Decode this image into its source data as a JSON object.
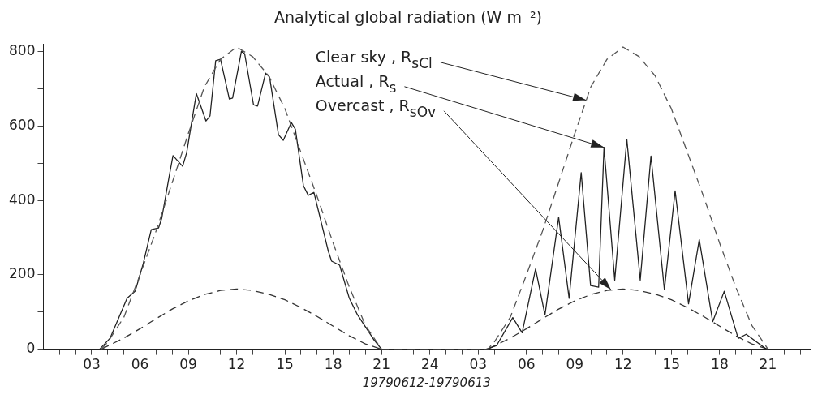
{
  "chart_data": {
    "type": "line",
    "title": "Analytical global radiation (W m⁻²)",
    "xlabel": "19790612-19790613",
    "xlim": [
      "1979-06-12T00:00",
      "1979-06-13T23:36"
    ],
    "ylim": [
      0,
      820
    ],
    "xticks": [
      {
        "value": "1979-06-12T01:00",
        "label": null
      },
      {
        "value": "1979-06-12T02:00",
        "label": null
      },
      {
        "value": "1979-06-12T03:00",
        "label": "03"
      },
      {
        "value": "1979-06-12T04:00",
        "label": null
      },
      {
        "value": "1979-06-12T05:00",
        "label": null
      },
      {
        "value": "1979-06-12T06:00",
        "label": "06"
      },
      {
        "value": "1979-06-12T07:00",
        "label": null
      },
      {
        "value": "1979-06-12T08:00",
        "label": null
      },
      {
        "value": "1979-06-12T09:00",
        "label": "09"
      },
      {
        "value": "1979-06-12T10:00",
        "label": null
      },
      {
        "value": "1979-06-12T11:00",
        "label": null
      },
      {
        "value": "1979-06-12T12:00",
        "label": "12"
      },
      {
        "value": "1979-06-12T13:00",
        "label": null
      },
      {
        "value": "1979-06-12T14:00",
        "label": null
      },
      {
        "value": "1979-06-12T15:00",
        "label": "15"
      },
      {
        "value": "1979-06-12T16:00",
        "label": null
      },
      {
        "value": "1979-06-12T17:00",
        "label": null
      },
      {
        "value": "1979-06-12T18:00",
        "label": "18"
      },
      {
        "value": "1979-06-12T19:00",
        "label": null
      },
      {
        "value": "1979-06-12T20:00",
        "label": null
      },
      {
        "value": "1979-06-12T21:00",
        "label": "21"
      },
      {
        "value": "1979-06-12T22:00",
        "label": null
      },
      {
        "value": "1979-06-12T23:00",
        "label": null
      },
      {
        "value": "1979-06-12T24:00",
        "label": "24"
      },
      {
        "value": "1979-06-13T01:00",
        "label": null
      },
      {
        "value": "1979-06-13T02:00",
        "label": null
      },
      {
        "value": "1979-06-13T03:00",
        "label": "03"
      },
      {
        "value": "1979-06-13T04:00",
        "label": null
      },
      {
        "value": "1979-06-13T05:00",
        "label": null
      },
      {
        "value": "1979-06-13T06:00",
        "label": "06"
      },
      {
        "value": "1979-06-13T07:00",
        "label": null
      },
      {
        "value": "1979-06-13T08:00",
        "label": null
      },
      {
        "value": "1979-06-13T09:00",
        "label": "09"
      },
      {
        "value": "1979-06-13T10:00",
        "label": null
      },
      {
        "value": "1979-06-13T11:00",
        "label": null
      },
      {
        "value": "1979-06-13T12:00",
        "label": "12"
      },
      {
        "value": "1979-06-13T13:00",
        "label": null
      },
      {
        "value": "1979-06-13T14:00",
        "label": null
      },
      {
        "value": "1979-06-13T15:00",
        "label": "15"
      },
      {
        "value": "1979-06-13T16:00",
        "label": null
      },
      {
        "value": "1979-06-13T17:00",
        "label": null
      },
      {
        "value": "1979-06-13T18:00",
        "label": "18"
      },
      {
        "value": "1979-06-13T19:00",
        "label": null
      },
      {
        "value": "1979-06-13T20:00",
        "label": null
      },
      {
        "value": "1979-06-13T21:00",
        "label": "21"
      },
      {
        "value": "1979-06-13T22:00",
        "label": null
      },
      {
        "value": "1979-06-13T23:00",
        "label": null
      }
    ],
    "yticks": [
      0,
      {
        "value": 100,
        "label": null
      },
      200,
      {
        "value": 300,
        "label": null
      },
      400,
      {
        "value": 500,
        "label": null
      },
      600,
      {
        "value": 700,
        "label": null
      },
      800
    ],
    "grid": false,
    "legend": false,
    "marker": "none",
    "series": [
      {
        "color": "#555555",
        "line_style": "dashed",
        "x": [
          "1979-06-12T03:36",
          "1979-06-12T04:00",
          "1979-06-12T05:00",
          "1979-06-12T06:00",
          "1979-06-12T07:00",
          "1979-06-12T08:00",
          "1979-06-12T09:00",
          "1979-06-12T10:00",
          "1979-06-12T11:00",
          "1979-06-12T12:00",
          "1979-06-12T13:00",
          "1979-06-12T14:00",
          "1979-06-12T15:00",
          "1979-06-12T16:00",
          "1979-06-12T17:00",
          "1979-06-12T18:00",
          "1979-06-12T19:00",
          "1979-06-12T20:00",
          "1979-06-12T21:00",
          "1979-06-13T03:36",
          "1979-06-13T04:00",
          "1979-06-13T05:00",
          "1979-06-13T06:00",
          "1979-06-13T07:00",
          "1979-06-13T08:00",
          "1979-06-13T09:00",
          "1979-06-13T10:00",
          "1979-06-13T11:00",
          "1979-06-13T12:00",
          "1979-06-13T13:00",
          "1979-06-13T14:00",
          "1979-06-13T15:00",
          "1979-06-13T16:00",
          "1979-06-13T17:00",
          "1979-06-13T18:00",
          "1979-06-13T19:00",
          "1979-06-13T20:00",
          "1979-06-13T21:00"
        ],
        "values": [
          0,
          19,
          86,
          200,
          318,
          448,
          580,
          706,
          780,
          813,
          787,
          735,
          647,
          529,
          411,
          285,
          167,
          64,
          0,
          0,
          19,
          86,
          200,
          318,
          448,
          580,
          706,
          780,
          813,
          787,
          735,
          647,
          529,
          411,
          285,
          167,
          64,
          0
        ]
      },
      {
        "color": "#222222",
        "line_style": "solid",
        "x": [
          "1979-06-12T03:30",
          "1979-06-12T04:09",
          "1979-06-12T05:12",
          "1979-06-12T05:42",
          "1979-06-12T06:12",
          "1979-06-12T06:42",
          "1979-06-12T07:09",
          "1979-06-12T07:21",
          "1979-06-12T07:48",
          "1979-06-12T08:03",
          "1979-06-12T08:39",
          "1979-06-12T08:54",
          "1979-06-12T09:30",
          "1979-06-12T10:06",
          "1979-06-12T10:21",
          "1979-06-12T10:42",
          "1979-06-12T11:00",
          "1979-06-12T11:33",
          "1979-06-12T11:45",
          "1979-06-12T12:18",
          "1979-06-12T12:30",
          "1979-06-12T13:03",
          "1979-06-12T13:18",
          "1979-06-12T13:48",
          "1979-06-12T14:03",
          "1979-06-12T14:36",
          "1979-06-12T14:54",
          "1979-06-12T15:24",
          "1979-06-12T15:39",
          "1979-06-12T16:09",
          "1979-06-12T16:27",
          "1979-06-12T16:48",
          "1979-06-12T17:42",
          "1979-06-12T17:54",
          "1979-06-12T18:24",
          "1979-06-12T19:00",
          "1979-06-12T19:30",
          "1979-06-12T20:30",
          "1979-06-12T21:00",
          "1979-06-13T03:30",
          "1979-06-13T04:09",
          "1979-06-13T05:09",
          "1979-06-13T05:44",
          "1979-06-13T06:34",
          "1979-06-13T07:09",
          "1979-06-13T08:00",
          "1979-06-13T08:39",
          "1979-06-13T09:24",
          "1979-06-13T09:59",
          "1979-06-13T10:29",
          "1979-06-13T10:49",
          "1979-06-13T11:29",
          "1979-06-13T12:14",
          "1979-06-13T13:04",
          "1979-06-13T13:44",
          "1979-06-13T14:34",
          "1979-06-13T15:14",
          "1979-06-13T16:04",
          "1979-06-13T16:44",
          "1979-06-13T17:34",
          "1979-06-13T18:17",
          "1979-06-13T19:09",
          "1979-06-13T19:39",
          "1979-06-13T20:54"
        ],
        "values": [
          0,
          30,
          137,
          156,
          230,
          322,
          326,
          352,
          462,
          521,
          492,
          529,
          688,
          614,
          628,
          776,
          780,
          673,
          676,
          802,
          795,
          658,
          654,
          743,
          732,
          577,
          562,
          610,
          592,
          440,
          414,
          422,
          263,
          237,
          226,
          137,
          93,
          27,
          0,
          0,
          10,
          85,
          44,
          216,
          92,
          355,
          137,
          475,
          171,
          167,
          543,
          186,
          565,
          186,
          520,
          160,
          426,
          122,
          295,
          74,
          156,
          29,
          40,
          0
        ]
      },
      {
        "color": "#333333",
        "line_style": "dashed",
        "x": [
          "1979-06-12T03:36",
          "1979-06-12T05:00",
          "1979-06-12T06:00",
          "1979-06-12T07:00",
          "1979-06-12T08:00",
          "1979-06-12T09:00",
          "1979-06-12T10:00",
          "1979-06-12T11:00",
          "1979-06-12T12:00",
          "1979-06-12T13:00",
          "1979-06-12T14:00",
          "1979-06-12T15:00",
          "1979-06-12T16:00",
          "1979-06-12T17:00",
          "1979-06-12T18:00",
          "1979-06-12T19:00",
          "1979-06-12T20:00",
          "1979-06-12T21:00",
          "1979-06-13T03:36",
          "1979-06-13T05:00",
          "1979-06-13T06:00",
          "1979-06-13T07:00",
          "1979-06-13T08:00",
          "1979-06-13T09:00",
          "1979-06-13T10:00",
          "1979-06-13T11:00",
          "1979-06-13T12:00",
          "1979-06-13T13:00",
          "1979-06-13T14:00",
          "1979-06-13T15:00",
          "1979-06-13T16:00",
          "1979-06-13T17:00",
          "1979-06-13T18:00",
          "1979-06-13T19:00",
          "1979-06-13T20:00",
          "1979-06-13T21:00"
        ],
        "values": [
          0,
          30,
          55,
          82,
          108,
          130,
          147,
          158,
          162,
          158,
          148,
          133,
          112,
          88,
          62,
          36,
          14,
          0,
          0,
          30,
          55,
          82,
          108,
          130,
          147,
          158,
          162,
          158,
          148,
          133,
          112,
          88,
          62,
          36,
          14,
          0
        ]
      }
    ],
    "annotations": [
      {
        "text": "Clear sky , R$_{sCl}$",
        "x": "1979-06-13T09:42",
        "y": 670
      },
      {
        "text": "Actual , R$_{s}$",
        "x": "1979-06-13T10:49",
        "y": 543
      },
      {
        "text": "Overcast , R$_{sOv}$",
        "x": "1979-06-13T11:15",
        "y": 160
      }
    ]
  }
}
